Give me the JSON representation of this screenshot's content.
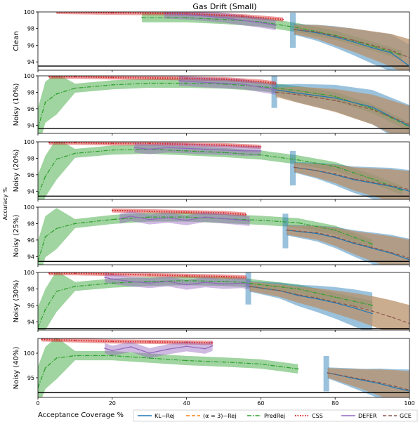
{
  "chart_data": {
    "type": "line",
    "title": "Gas Drift (Small)",
    "xlabel": "Acceptance Coverage %",
    "ylabel": "Accuracy %",
    "xlim": [
      0,
      100
    ],
    "x_ticks": [
      0,
      20,
      40,
      60,
      80,
      100
    ],
    "legend": {
      "placement": "bottom-right",
      "entries": [
        {
          "label": "KL−Rej",
          "color": "#1f77b4",
          "dash": "solid"
        },
        {
          "label": "(α = 3)−Rej",
          "color": "#ff7f0e",
          "dash": "dashed"
        },
        {
          "label": "PredRej",
          "color": "#2ca02c",
          "dash": "dashdot"
        },
        {
          "label": "CSS",
          "color": "#d62728",
          "dash": "dotted"
        },
        {
          "label": "DEFER",
          "color": "#9467bd",
          "dash": "solid"
        },
        {
          "label": "GCE",
          "color": "#8c564b",
          "dash": "dashed"
        }
      ]
    },
    "panels": [
      {
        "ylabel": "Clean",
        "ylim": [
          93,
          100
        ],
        "y_ticks": [
          94,
          96,
          98,
          100
        ],
        "baseline": 93.5,
        "series": {
          "PredRej": [
            [
              28,
              99.3
            ],
            [
              40,
              99.3
            ],
            [
              50,
              99.1
            ],
            [
              60,
              98.8
            ],
            [
              70,
              98.1
            ],
            [
              80,
              97.2
            ],
            [
              90,
              95.9
            ],
            [
              98,
              94.8
            ]
          ],
          "CSS": [
            [
              5,
              100
            ],
            [
              20,
              99.9
            ],
            [
              40,
              99.8
            ],
            [
              55,
              99.5
            ],
            [
              66,
              99.1
            ]
          ],
          "DEFER": [
            [
              34,
              99.8
            ],
            [
              40,
              99.7
            ],
            [
              45,
              99.5
            ],
            [
              50,
              99.3
            ],
            [
              55,
              99.0
            ],
            [
              60,
              98.7
            ],
            [
              64,
              98.4
            ]
          ],
          "KL-Rej": [
            [
              69,
              97.9
            ],
            [
              75,
              97.5
            ],
            [
              80,
              97.0
            ],
            [
              85,
              96.4
            ],
            [
              90,
              95.7
            ],
            [
              95,
              95.1
            ],
            [
              100,
              93.5
            ]
          ],
          "GCE": [
            [
              69,
              97.9
            ],
            [
              75,
              97.6
            ],
            [
              80,
              97.1
            ],
            [
              85,
              96.6
            ],
            [
              90,
              96.0
            ],
            [
              95,
              95.4
            ],
            [
              100,
              94.5
            ]
          ]
        }
      },
      {
        "ylabel": "Noisy (10%)",
        "ylim": [
          93,
          100
        ],
        "y_ticks": [
          94,
          96,
          98,
          100
        ],
        "baseline": 93.6,
        "series": {
          "PredRej": [
            [
              0,
              93.6
            ],
            [
              2,
              96.8
            ],
            [
              5,
              97.8
            ],
            [
              10,
              98.5
            ],
            [
              20,
              98.9
            ],
            [
              30,
              99.1
            ],
            [
              40,
              99.1
            ],
            [
              50,
              99.0
            ],
            [
              60,
              98.7
            ],
            [
              70,
              98.2
            ],
            [
              80,
              97.5
            ],
            [
              90,
              96.0
            ],
            [
              100,
              93.8
            ]
          ],
          "CSS": [
            [
              3,
              99.9
            ],
            [
              10,
              99.9
            ],
            [
              20,
              99.8
            ],
            [
              40,
              99.7
            ],
            [
              50,
              99.6
            ],
            [
              60,
              99.3
            ],
            [
              64,
              99.1
            ]
          ],
          "DEFER": [
            [
              38,
              99.4
            ],
            [
              45,
              99.2
            ],
            [
              50,
              99.1
            ],
            [
              55,
              99.0
            ],
            [
              60,
              98.6
            ],
            [
              64,
              98.3
            ]
          ],
          "KL-Rej": [
            [
              64,
              98.3
            ],
            [
              70,
              97.9
            ],
            [
              80,
              97.3
            ],
            [
              90,
              96.2
            ],
            [
              100,
              93.9
            ]
          ],
          "GCE": [
            [
              64,
              98.0
            ],
            [
              70,
              97.7
            ],
            [
              80,
              97.0
            ],
            [
              90,
              95.9
            ],
            [
              100,
              94.1
            ]
          ]
        }
      },
      {
        "ylabel": "Noisy (20%)",
        "ylim": [
          93,
          100
        ],
        "y_ticks": [
          94,
          96,
          98,
          100
        ],
        "baseline": 93.4,
        "series": {
          "PredRej": [
            [
              0,
              93.5
            ],
            [
              2,
              95.8
            ],
            [
              5,
              97.9
            ],
            [
              10,
              98.6
            ],
            [
              20,
              99.0
            ],
            [
              30,
              99.1
            ],
            [
              40,
              98.9
            ],
            [
              50,
              98.7
            ],
            [
              60,
              98.4
            ],
            [
              70,
              97.8
            ],
            [
              80,
              97.0
            ],
            [
              90,
              95.5
            ],
            [
              98,
              94.1
            ]
          ],
          "CSS": [
            [
              3,
              99.9
            ],
            [
              10,
              99.9
            ],
            [
              20,
              99.8
            ],
            [
              30,
              99.8
            ],
            [
              40,
              99.7
            ],
            [
              50,
              99.6
            ],
            [
              60,
              99.4
            ]
          ],
          "DEFER": [
            [
              26,
              99.3
            ],
            [
              30,
              99.1
            ],
            [
              35,
              99.3
            ],
            [
              40,
              99.2
            ],
            [
              45,
              99.1
            ],
            [
              50,
              99.0
            ],
            [
              55,
              98.9
            ],
            [
              60,
              98.9
            ]
          ],
          "KL-Rej": [
            [
              69,
              96.9
            ],
            [
              75,
              96.5
            ],
            [
              80,
              96.0
            ],
            [
              85,
              95.4
            ],
            [
              90,
              95.0
            ],
            [
              95,
              94.6
            ],
            [
              100,
              94.0
            ]
          ],
          "GCE": [
            [
              69,
              96.9
            ],
            [
              75,
              96.5
            ],
            [
              80,
              96.1
            ],
            [
              85,
              95.5
            ],
            [
              90,
              95.1
            ],
            [
              95,
              94.7
            ],
            [
              100,
              94.2
            ]
          ]
        }
      },
      {
        "ylabel": "Noisy (25%)",
        "ylim": [
          93,
          100
        ],
        "y_ticks": [
          94,
          96,
          98,
          100
        ],
        "baseline": 93.4,
        "series": {
          "PredRej": [
            [
              0,
              93.4
            ],
            [
              2,
              96.4
            ],
            [
              5,
              97.4
            ],
            [
              10,
              98.0
            ],
            [
              20,
              98.5
            ],
            [
              30,
              98.8
            ],
            [
              40,
              98.8
            ],
            [
              50,
              98.6
            ],
            [
              60,
              98.4
            ],
            [
              70,
              98.1
            ],
            [
              80,
              97.2
            ],
            [
              90,
              95.5
            ]
          ],
          "CSS": [
            [
              20,
              99.6
            ],
            [
              30,
              99.5
            ],
            [
              40,
              99.4
            ],
            [
              50,
              99.3
            ],
            [
              56,
              99.1
            ]
          ],
          "DEFER": [
            [
              22,
              98.6
            ],
            [
              25,
              98.9
            ],
            [
              30,
              98.5
            ],
            [
              35,
              98.7
            ],
            [
              40,
              98.4
            ],
            [
              45,
              98.8
            ],
            [
              50,
              98.6
            ],
            [
              55,
              98.4
            ],
            [
              57,
              98.3
            ]
          ],
          "KL-Rej": [
            [
              67,
              97.2
            ],
            [
              75,
              96.8
            ],
            [
              80,
              96.3
            ],
            [
              85,
              95.6
            ],
            [
              90,
              95.0
            ],
            [
              95,
              94.4
            ],
            [
              100,
              93.6
            ]
          ],
          "GCE": [
            [
              67,
              97.2
            ],
            [
              75,
              96.9
            ],
            [
              80,
              96.4
            ],
            [
              85,
              95.7
            ],
            [
              90,
              95.1
            ],
            [
              95,
              94.5
            ],
            [
              100,
              93.8
            ]
          ]
        }
      },
      {
        "ylabel": "Noisy (30%)",
        "ylim": [
          93,
          100
        ],
        "y_ticks": [
          94,
          96,
          98,
          100
        ],
        "baseline": 93.2,
        "series": {
          "PredRej": [
            [
              0,
              93.3
            ],
            [
              2,
              95.5
            ],
            [
              5,
              97.7
            ],
            [
              10,
              98.3
            ],
            [
              20,
              98.7
            ],
            [
              30,
              98.9
            ],
            [
              40,
              99.0
            ],
            [
              50,
              98.9
            ],
            [
              55,
              98.8
            ],
            [
              60,
              98.5
            ],
            [
              70,
              98.0
            ],
            [
              80,
              97.0
            ],
            [
              90,
              96.0
            ]
          ],
          "CSS": [
            [
              3,
              99.9
            ],
            [
              10,
              99.9
            ],
            [
              20,
              99.8
            ],
            [
              30,
              99.7
            ],
            [
              40,
              99.6
            ],
            [
              50,
              99.5
            ],
            [
              56,
              99.4
            ]
          ],
          "DEFER": [
            [
              18,
              99.4
            ],
            [
              20,
              99.2
            ],
            [
              25,
              98.9
            ],
            [
              30,
              98.7
            ],
            [
              35,
              98.9
            ],
            [
              40,
              98.5
            ],
            [
              45,
              98.8
            ],
            [
              50,
              98.6
            ],
            [
              55,
              98.7
            ],
            [
              57,
              98.5
            ]
          ],
          "KL-Rej": [
            [
              57,
              98.3
            ],
            [
              65,
              97.8
            ],
            [
              70,
              97.2
            ],
            [
              75,
              96.8
            ],
            [
              80,
              96.3
            ],
            [
              85,
              95.7
            ],
            [
              90,
              95.0
            ]
          ],
          "GCE": [
            [
              57,
              98.3
            ],
            [
              65,
              97.8
            ],
            [
              70,
              97.3
            ],
            [
              75,
              96.9
            ],
            [
              80,
              96.4
            ],
            [
              85,
              95.9
            ],
            [
              90,
              95.3
            ],
            [
              95,
              94.6
            ],
            [
              100,
              93.8
            ]
          ]
        }
      },
      {
        "ylabel": "Noisy (40%)",
        "ylim": [
          91,
          103
        ],
        "y_ticks": [
          95,
          100
        ],
        "baseline": 92.0,
        "series": {
          "PredRej": [
            [
              0,
              93.0
            ],
            [
              2,
              97.0
            ],
            [
              5,
              99.0
            ],
            [
              10,
              99.5
            ],
            [
              20,
              99.5
            ],
            [
              30,
              99.0
            ],
            [
              40,
              98.5
            ],
            [
              50,
              98.2
            ],
            [
              60,
              97.8
            ],
            [
              70,
              96.8
            ]
          ],
          "CSS": [
            [
              1,
              102.8
            ],
            [
              10,
              102.6
            ],
            [
              20,
              102.4
            ],
            [
              30,
              102.3
            ],
            [
              40,
              102.2
            ],
            [
              47,
              102.1
            ]
          ],
          "DEFER": [
            [
              18,
              101.0
            ],
            [
              20,
              100.5
            ],
            [
              25,
              101.3
            ],
            [
              30,
              100.0
            ],
            [
              35,
              100.8
            ],
            [
              40,
              101.4
            ],
            [
              45,
              100.9
            ],
            [
              47,
              101.5
            ]
          ],
          "KL-Rej": [
            [
              78,
              96.0
            ],
            [
              83,
              95.2
            ],
            [
              88,
              94.4
            ],
            [
              92,
              93.8
            ],
            [
              96,
              93.0
            ],
            [
              100,
              92.3
            ]
          ],
          "GCE": [
            [
              78,
              96.0
            ],
            [
              83,
              95.3
            ],
            [
              88,
              94.6
            ],
            [
              92,
              94.0
            ],
            [
              96,
              93.3
            ],
            [
              100,
              92.5
            ]
          ]
        }
      }
    ]
  }
}
